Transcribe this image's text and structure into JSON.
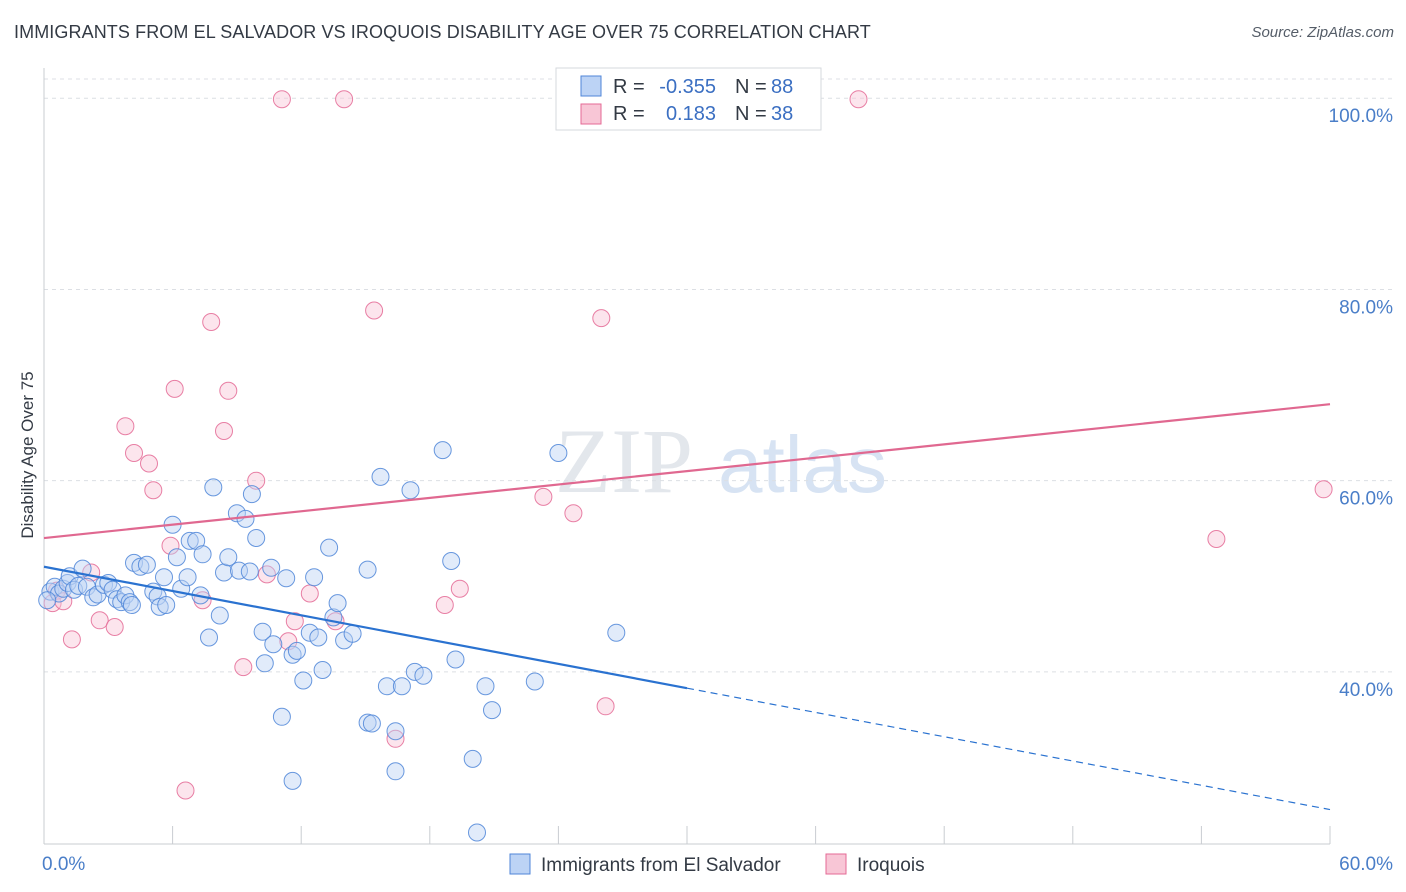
{
  "title": "IMMIGRANTS FROM EL SALVADOR VS IROQUOIS DISABILITY AGE OVER 75 CORRELATION CHART",
  "source": "Source: ZipAtlas.com",
  "watermark": {
    "part1": "ZIP",
    "part2": "atlas"
  },
  "colors": {
    "blue": "#4f86d8",
    "blue_fill": "#bcd3f5",
    "blue_line": "#2a72d0",
    "pink": "#e46a95",
    "pink_fill": "#f8c6d6",
    "pink_line": "#e06890",
    "axis_text": "#4a7ec8",
    "grid": "#dcdfe4"
  },
  "legend": {
    "rows": [
      {
        "r_label": "R =",
        "r_value": "-0.355",
        "n_label": "N =",
        "n_value": "88"
      },
      {
        "r_label": "R =",
        "r_value": "0.183",
        "n_label": "N =",
        "n_value": "38"
      }
    ]
  },
  "chart_data": {
    "type": "scatter",
    "title": "IMMIGRANTS FROM EL SALVADOR VS IROQUOIS DISABILITY AGE OVER 75 CORRELATION CHART",
    "xlabel": "",
    "ylabel": "Disability Age Over 75",
    "xlim": [
      0,
      60
    ],
    "ylim": [
      22,
      104
    ],
    "x_tick_labels": [
      "0.0%",
      "60.0%"
    ],
    "y_ticks": [
      40,
      60,
      80,
      100
    ],
    "y_tick_labels": [
      "40.0%",
      "60.0%",
      "80.0%",
      "100.0%"
    ],
    "grid": "horizontal dashed",
    "legend_position": "top-center",
    "series": [
      {
        "name": "Immigrants from El Salvador",
        "color": "#4f86d8",
        "r": -0.355,
        "n": 88,
        "trend": {
          "x": [
            0,
            30
          ],
          "y": [
            51.0,
            38.3
          ],
          "extended_to": [
            60,
            25.6
          ]
        },
        "points": [
          [
            0.3,
            48.4
          ],
          [
            0.5,
            48.9
          ],
          [
            0.7,
            48.2
          ],
          [
            0.9,
            48.7
          ],
          [
            1.1,
            49.3
          ],
          [
            1.2,
            50.0
          ],
          [
            1.4,
            48.6
          ],
          [
            1.6,
            49.0
          ],
          [
            1.8,
            50.8
          ],
          [
            2.0,
            48.9
          ],
          [
            2.3,
            47.8
          ],
          [
            2.5,
            48.1
          ],
          [
            2.8,
            49.1
          ],
          [
            3.0,
            49.3
          ],
          [
            3.2,
            48.6
          ],
          [
            3.4,
            47.6
          ],
          [
            3.6,
            47.3
          ],
          [
            3.8,
            48.0
          ],
          [
            4.0,
            47.3
          ],
          [
            4.1,
            47.0
          ],
          [
            4.2,
            51.4
          ],
          [
            4.5,
            51.0
          ],
          [
            4.8,
            51.2
          ],
          [
            5.1,
            48.4
          ],
          [
            5.3,
            47.9
          ],
          [
            5.4,
            46.8
          ],
          [
            5.7,
            47.0
          ],
          [
            5.6,
            49.9
          ],
          [
            6.0,
            55.4
          ],
          [
            6.2,
            52.0
          ],
          [
            6.4,
            48.7
          ],
          [
            6.7,
            49.9
          ],
          [
            6.8,
            53.7
          ],
          [
            7.1,
            53.7
          ],
          [
            7.3,
            48.0
          ],
          [
            7.4,
            52.3
          ],
          [
            7.7,
            43.6
          ],
          [
            7.9,
            59.3
          ],
          [
            8.2,
            45.9
          ],
          [
            8.4,
            50.4
          ],
          [
            8.6,
            52.0
          ],
          [
            9.0,
            56.6
          ],
          [
            9.1,
            50.6
          ],
          [
            9.4,
            56.0
          ],
          [
            9.6,
            50.5
          ],
          [
            9.7,
            58.6
          ],
          [
            9.9,
            54.0
          ],
          [
            10.2,
            44.2
          ],
          [
            10.3,
            40.9
          ],
          [
            10.6,
            50.9
          ],
          [
            10.7,
            42.9
          ],
          [
            11.1,
            35.3
          ],
          [
            11.3,
            49.8
          ],
          [
            11.6,
            41.8
          ],
          [
            11.6,
            28.6
          ],
          [
            11.8,
            42.2
          ],
          [
            12.1,
            39.1
          ],
          [
            12.4,
            44.1
          ],
          [
            12.6,
            49.9
          ],
          [
            12.8,
            43.6
          ],
          [
            13.0,
            40.2
          ],
          [
            13.3,
            53.0
          ],
          [
            13.5,
            45.7
          ],
          [
            13.7,
            47.2
          ],
          [
            14.0,
            43.3
          ],
          [
            14.4,
            44.0
          ],
          [
            15.1,
            50.7
          ],
          [
            15.1,
            34.7
          ],
          [
            15.3,
            34.6
          ],
          [
            15.7,
            60.4
          ],
          [
            16.0,
            38.5
          ],
          [
            16.4,
            33.8
          ],
          [
            16.4,
            29.6
          ],
          [
            16.7,
            38.5
          ],
          [
            17.1,
            59.0
          ],
          [
            17.3,
            40.0
          ],
          [
            17.7,
            39.6
          ],
          [
            18.6,
            63.2
          ],
          [
            19.0,
            51.6
          ],
          [
            19.2,
            41.3
          ],
          [
            20.0,
            30.9
          ],
          [
            20.2,
            23.2
          ],
          [
            20.6,
            38.5
          ],
          [
            20.9,
            36.0
          ],
          [
            22.9,
            39.0
          ],
          [
            24.0,
            62.9
          ],
          [
            26.7,
            44.1
          ],
          [
            0.15,
            47.5
          ]
        ]
      },
      {
        "name": "Iroquois",
        "color": "#e46a95",
        "r": 0.183,
        "n": 38,
        "trend": {
          "x": [
            0,
            60
          ],
          "y": [
            54.0,
            68.0
          ]
        },
        "points": [
          [
            0.4,
            47.2
          ],
          [
            0.6,
            48.5
          ],
          [
            0.9,
            47.4
          ],
          [
            1.3,
            43.4
          ],
          [
            2.2,
            50.4
          ],
          [
            2.6,
            45.4
          ],
          [
            3.3,
            44.7
          ],
          [
            3.8,
            65.7
          ],
          [
            4.2,
            62.9
          ],
          [
            4.9,
            61.8
          ],
          [
            5.1,
            59.0
          ],
          [
            5.9,
            53.2
          ],
          [
            6.1,
            69.6
          ],
          [
            6.6,
            27.6
          ],
          [
            7.4,
            47.5
          ],
          [
            7.8,
            76.6
          ],
          [
            8.4,
            65.2
          ],
          [
            8.6,
            69.4
          ],
          [
            9.3,
            40.5
          ],
          [
            9.9,
            60.0
          ],
          [
            10.4,
            50.2
          ],
          [
            11.1,
            99.9
          ],
          [
            11.4,
            43.2
          ],
          [
            11.7,
            45.3
          ],
          [
            12.4,
            48.2
          ],
          [
            13.6,
            45.3
          ],
          [
            14.0,
            99.9
          ],
          [
            15.4,
            77.8
          ],
          [
            16.4,
            33.0
          ],
          [
            18.7,
            47.0
          ],
          [
            19.4,
            48.7
          ],
          [
            23.3,
            58.3
          ],
          [
            24.7,
            56.6
          ],
          [
            26.0,
            77.0
          ],
          [
            26.2,
            36.4
          ],
          [
            38.0,
            99.9
          ],
          [
            54.7,
            53.9
          ],
          [
            59.7,
            59.1
          ]
        ]
      }
    ]
  },
  "bottom_legend": [
    {
      "label": "Immigrants from El Salvador"
    },
    {
      "label": "Iroquois"
    }
  ]
}
